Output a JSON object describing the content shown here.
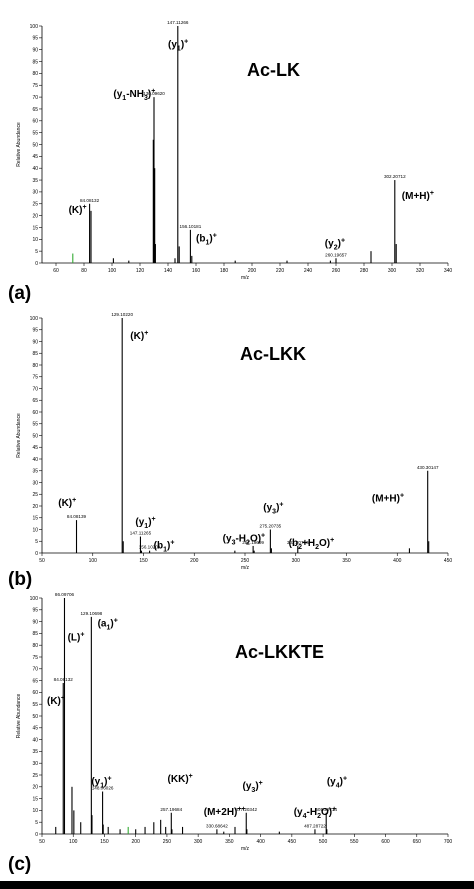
{
  "chart_data": [
    {
      "type": "bar",
      "panel_label": "(a)",
      "compound": "Ac-LK",
      "xlabel": "m/z",
      "ylabel": "Relative Abundance",
      "xlim": [
        50,
        340
      ],
      "ylim": [
        0,
        100
      ],
      "x_ticks": [
        60,
        80,
        100,
        120,
        140,
        160,
        180,
        200,
        220,
        240,
        260,
        280,
        300,
        320,
        340
      ],
      "y_ticks": [
        0,
        5,
        10,
        15,
        20,
        25,
        30,
        35,
        40,
        45,
        50,
        55,
        60,
        65,
        70,
        75,
        80,
        85,
        90,
        95,
        100
      ],
      "peaks": [
        {
          "mz": 72,
          "intensity": 4,
          "color": "#33aa33"
        },
        {
          "mz": 84,
          "intensity": 25
        },
        {
          "mz": 85,
          "intensity": 22
        },
        {
          "mz": 101,
          "intensity": 2
        },
        {
          "mz": 112,
          "intensity": 1
        },
        {
          "mz": 129.5,
          "intensity": 52
        },
        {
          "mz": 130,
          "intensity": 70
        },
        {
          "mz": 130.5,
          "intensity": 40
        },
        {
          "mz": 131,
          "intensity": 8
        },
        {
          "mz": 145,
          "intensity": 2
        },
        {
          "mz": 147,
          "intensity": 100
        },
        {
          "mz": 148,
          "intensity": 7
        },
        {
          "mz": 156,
          "intensity": 14
        },
        {
          "mz": 157,
          "intensity": 3
        },
        {
          "mz": 188,
          "intensity": 1
        },
        {
          "mz": 225,
          "intensity": 1
        },
        {
          "mz": 256,
          "intensity": 1
        },
        {
          "mz": 260,
          "intensity": 2
        },
        {
          "mz": 285,
          "intensity": 5
        },
        {
          "mz": 302,
          "intensity": 35
        },
        {
          "mz": 303,
          "intensity": 8
        }
      ],
      "peak_labels": [
        {
          "text": "147.11266",
          "mz": 147,
          "intensity": 100
        },
        {
          "text": "130.09620",
          "mz": 130,
          "intensity": 70
        },
        {
          "text": "84.08132",
          "mz": 84,
          "intensity": 25
        },
        {
          "text": "156.10181",
          "mz": 156,
          "intensity": 14
        },
        {
          "text": "260.19657",
          "mz": 260,
          "intensity": 2
        },
        {
          "text": "302.20712",
          "mz": 302,
          "intensity": 35
        }
      ],
      "annotations": [
        {
          "base": "(y",
          "sub": "1",
          "mid": ")",
          "sup": "+",
          "mz": 140,
          "intensity": 91
        },
        {
          "base": "(y",
          "sub": "1",
          "mid": "-NH",
          "sub2": "3",
          "end": ")",
          "sup": "+",
          "mz": 101,
          "intensity": 70
        },
        {
          "base": "(K)",
          "sup": "+",
          "mz": 69,
          "intensity": 21
        },
        {
          "base": "(b",
          "sub": "1",
          "mid": ")",
          "sup": "+",
          "mz": 160,
          "intensity": 9
        },
        {
          "base": "(y",
          "sub": "2",
          "mid": ")",
          "sup": "+",
          "mz": 252,
          "intensity": 7
        },
        {
          "base": "(M+H)",
          "sup": "+",
          "mz": 307,
          "intensity": 27
        }
      ]
    },
    {
      "type": "bar",
      "panel_label": "(b)",
      "compound": "Ac-LKK",
      "xlabel": "m/z",
      "ylabel": "Relative Abundance",
      "xlim": [
        50,
        450
      ],
      "ylim": [
        0,
        100
      ],
      "x_ticks": [
        50,
        100,
        150,
        200,
        250,
        300,
        350,
        400,
        450
      ],
      "y_ticks": [
        0,
        5,
        10,
        15,
        20,
        25,
        30,
        35,
        40,
        45,
        50,
        55,
        60,
        65,
        70,
        75,
        80,
        85,
        90,
        95,
        100
      ],
      "peaks": [
        {
          "mz": 84,
          "intensity": 14
        },
        {
          "mz": 129,
          "intensity": 100
        },
        {
          "mz": 130,
          "intensity": 5
        },
        {
          "mz": 147,
          "intensity": 7
        },
        {
          "mz": 148,
          "intensity": 1
        },
        {
          "mz": 156,
          "intensity": 1
        },
        {
          "mz": 240,
          "intensity": 1
        },
        {
          "mz": 258,
          "intensity": 3
        },
        {
          "mz": 259,
          "intensity": 1
        },
        {
          "mz": 275,
          "intensity": 10
        },
        {
          "mz": 276,
          "intensity": 2
        },
        {
          "mz": 302,
          "intensity": 3
        },
        {
          "mz": 412,
          "intensity": 2
        },
        {
          "mz": 430,
          "intensity": 35
        },
        {
          "mz": 431,
          "intensity": 5
        }
      ],
      "peak_labels": [
        {
          "text": "129.10220",
          "mz": 129,
          "intensity": 100
        },
        {
          "text": "84.08139",
          "mz": 84,
          "intensity": 14
        },
        {
          "text": "147.11265",
          "mz": 147,
          "intensity": 7
        },
        {
          "text": "156.10204",
          "mz": 156,
          "intensity": 1
        },
        {
          "text": "257.19699",
          "mz": 258,
          "intensity": 3
        },
        {
          "text": "275.20735",
          "mz": 275,
          "intensity": 10
        },
        {
          "text": "302.20716",
          "mz": 302,
          "intensity": 3
        },
        {
          "text": "430.30147",
          "mz": 430,
          "intensity": 35
        }
      ],
      "annotations": [
        {
          "base": "(K)",
          "sup": "+",
          "mz": 66,
          "intensity": 20
        },
        {
          "base": "(K)",
          "sup": "+",
          "mz": 137,
          "intensity": 91
        },
        {
          "base": "(y",
          "sub": "1",
          "mid": ")",
          "sup": "+",
          "mz": 142,
          "intensity": 12
        },
        {
          "base": "(b",
          "sub": "1",
          "mid": ")",
          "sup": "+",
          "mz": 160,
          "intensity": 2
        },
        {
          "base": "(y",
          "sub": "3",
          "mid": "-H",
          "sub2": "2",
          "end": "O)",
          "sup": "+",
          "mz": 228,
          "intensity": 5
        },
        {
          "base": "(y",
          "sub": "3",
          "mid": ")",
          "sup": "+",
          "mz": 268,
          "intensity": 18
        },
        {
          "base": "(b",
          "sub": "2",
          "mid": "+H",
          "sub2": "2",
          "end": "O)",
          "sup": "+",
          "mz": 293,
          "intensity": 3
        },
        {
          "base": "(M+H)",
          "sup": "+",
          "mz": 375,
          "intensity": 22
        }
      ]
    },
    {
      "type": "bar",
      "panel_label": "(c)",
      "compound": "Ac-LKKTE",
      "xlabel": "m/z",
      "ylabel": "Relative Abundance",
      "xlim": [
        50,
        700
      ],
      "ylim": [
        0,
        100
      ],
      "x_ticks": [
        50,
        100,
        150,
        200,
        250,
        300,
        350,
        400,
        450,
        500,
        550,
        600,
        650,
        700
      ],
      "y_ticks": [
        0,
        5,
        10,
        15,
        20,
        25,
        30,
        35,
        40,
        45,
        50,
        55,
        60,
        65,
        70,
        75,
        80,
        85,
        90,
        95,
        100
      ],
      "peaks": [
        {
          "mz": 72,
          "intensity": 3
        },
        {
          "mz": 84,
          "intensity": 64
        },
        {
          "mz": 86,
          "intensity": 100
        },
        {
          "mz": 98,
          "intensity": 20
        },
        {
          "mz": 101,
          "intensity": 10
        },
        {
          "mz": 112,
          "intensity": 5
        },
        {
          "mz": 129,
          "intensity": 92
        },
        {
          "mz": 130,
          "intensity": 8
        },
        {
          "mz": 147,
          "intensity": 18
        },
        {
          "mz": 148,
          "intensity": 4
        },
        {
          "mz": 156,
          "intensity": 3
        },
        {
          "mz": 175,
          "intensity": 2
        },
        {
          "mz": 188,
          "intensity": 3,
          "color": "#33aa33"
        },
        {
          "mz": 200,
          "intensity": 2
        },
        {
          "mz": 215,
          "intensity": 3
        },
        {
          "mz": 229,
          "intensity": 5
        },
        {
          "mz": 240,
          "intensity": 6
        },
        {
          "mz": 248,
          "intensity": 3
        },
        {
          "mz": 257,
          "intensity": 9
        },
        {
          "mz": 258,
          "intensity": 2
        },
        {
          "mz": 275,
          "intensity": 3
        },
        {
          "mz": 330,
          "intensity": 2
        },
        {
          "mz": 341,
          "intensity": 1
        },
        {
          "mz": 359,
          "intensity": 3
        },
        {
          "mz": 377,
          "intensity": 9
        },
        {
          "mz": 378,
          "intensity": 2
        },
        {
          "mz": 430,
          "intensity": 1
        },
        {
          "mz": 487,
          "intensity": 2
        },
        {
          "mz": 505,
          "intensity": 9
        },
        {
          "mz": 506,
          "intensity": 2
        }
      ],
      "peak_labels": [
        {
          "text": "86.09706",
          "mz": 86,
          "intensity": 100
        },
        {
          "text": "129.10698",
          "mz": 129,
          "intensity": 92
        },
        {
          "text": "84.08132",
          "mz": 84,
          "intensity": 64
        },
        {
          "text": "148.06026",
          "mz": 147,
          "intensity": 18
        },
        {
          "text": "257.19684",
          "mz": 257,
          "intensity": 9
        },
        {
          "text": "330.68642",
          "mz": 330,
          "intensity": 2
        },
        {
          "text": "377.20342",
          "mz": 377,
          "intensity": 9
        },
        {
          "text": "487.28722",
          "mz": 487,
          "intensity": 2
        },
        {
          "text": "505.29714",
          "mz": 505,
          "intensity": 9
        }
      ],
      "annotations": [
        {
          "base": "(L)",
          "sup": "+",
          "mz": 91,
          "intensity": 82
        },
        {
          "base": "(a",
          "sub": "1",
          "mid": ")",
          "sup": "+",
          "mz": 139,
          "intensity": 88
        },
        {
          "base": "(K)",
          "sup": "+",
          "mz": 58,
          "intensity": 55
        },
        {
          "base": "(y",
          "sub": "1",
          "mid": ")",
          "sup": "+",
          "mz": 129,
          "intensity": 21
        },
        {
          "base": "(KK)",
          "sup": "+",
          "mz": 251,
          "intensity": 22
        },
        {
          "base": "(M+2H)",
          "sup": "++",
          "mz": 309,
          "intensity": 8
        },
        {
          "base": "(y",
          "sub": "3",
          "mid": ")",
          "sup": "+",
          "mz": 371,
          "intensity": 19
        },
        {
          "base": "(y",
          "sub": "4",
          "mid": "-H",
          "sub2": "2",
          "end": "O)",
          "sup": "+",
          "mz": 453,
          "intensity": 8
        },
        {
          "base": "(y",
          "sub": "4",
          "mid": ")",
          "sup": "+",
          "mz": 506,
          "intensity": 21
        }
      ]
    }
  ]
}
